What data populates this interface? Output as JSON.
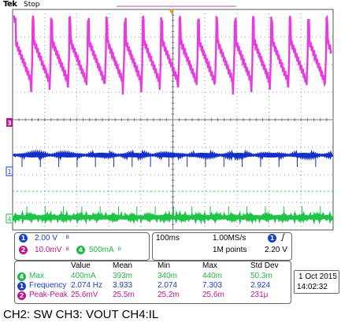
{
  "header": {
    "brand": "Tek",
    "run_state": "Stop"
  },
  "channels": {
    "ch1": {
      "marker": "1",
      "scale": "2.00 V",
      "color": "#1b3fc7"
    },
    "ch2": {
      "marker": "2",
      "scale": "10.0mV",
      "color": "#c0158f"
    },
    "ch4": {
      "marker": "4",
      "scale": "500mA",
      "color": "#21b84a"
    },
    "ch3_marker": "3",
    "ch4_marker": "4"
  },
  "colors": {
    "magenta_trace": "#e83ce0",
    "blue_trace": "#1230c8",
    "green_trace": "#1ec447",
    "grid": "#9a9a9a",
    "trigger_marker": "#f0a000"
  },
  "timebase": {
    "time_div": "100ms",
    "sample_rate": "1.00MS/s",
    "record_length": "1M points"
  },
  "trigger": {
    "source": "1",
    "slope": "ʃ",
    "level": "2.20 V"
  },
  "measurements": {
    "headers": [
      "Value",
      "Mean",
      "Min",
      "Max",
      "Std Dev"
    ],
    "rows": [
      {
        "ch": "4",
        "name": "Max",
        "values": [
          "400mA",
          "393m",
          "340m",
          "440m",
          "50.3m"
        ]
      },
      {
        "ch": "1",
        "name": "Frequency",
        "values": [
          "2.074 Hz",
          "3.933",
          "2.074",
          "7.303",
          "2.924"
        ]
      },
      {
        "ch": "2",
        "name": "Peak-Peak",
        "values": [
          "25.6mV",
          "25.5m",
          "25.2m",
          "25.6m",
          "231μ"
        ]
      }
    ]
  },
  "datetime": {
    "date": "1 Oct  2015",
    "time": "14:02:32"
  },
  "caption": "CH2: SW    CH3: VOUT    CH4:IL"
}
